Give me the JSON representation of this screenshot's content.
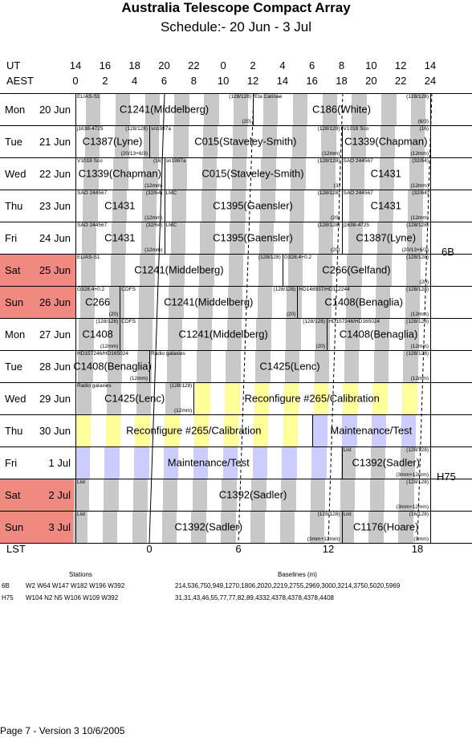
{
  "title": "Australia Telescope Compact Array",
  "subtitle": "Schedule:- 20 Jun - 3  Jul",
  "axis": {
    "ut_label": "UT",
    "aest_label": "AEST",
    "lst_label": "LST",
    "ut_ticks": [
      "14",
      "16",
      "18",
      "20",
      "22",
      "0",
      "2",
      "4",
      "6",
      "8",
      "10",
      "12",
      "14"
    ],
    "aest_ticks": [
      "0",
      "2",
      "4",
      "6",
      "8",
      "10",
      "12",
      "14",
      "16",
      "18",
      "20",
      "22",
      "24"
    ],
    "lst_ticks": [
      "0",
      "6",
      "12",
      "18"
    ]
  },
  "colors": {
    "weekend": "#f08a80",
    "grey": "#c8c8c8",
    "green": "#9be29b",
    "yellow": "#ffff99",
    "blue": "#ccccff"
  },
  "configs": [
    "6B",
    "H75"
  ],
  "days": [
    {
      "day": "Mon",
      "date": "20 Jun",
      "weekend": false
    },
    {
      "day": "Tue",
      "date": "21 Jun",
      "weekend": false
    },
    {
      "day": "Wed",
      "date": "22 Jun",
      "weekend": false
    },
    {
      "day": "Thu",
      "date": "23 Jun",
      "weekend": false
    },
    {
      "day": "Fri",
      "date": "24 Jun",
      "weekend": false
    },
    {
      "day": "Sat",
      "date": "25 Jun",
      "weekend": true
    },
    {
      "day": "Sun",
      "date": "26 Jun",
      "weekend": true
    },
    {
      "day": "Mon",
      "date": "27 Jun",
      "weekend": false
    },
    {
      "day": "Tue",
      "date": "28 Jun",
      "weekend": false
    },
    {
      "day": "Wed",
      "date": "29 Jun",
      "weekend": false
    },
    {
      "day": "Thu",
      "date": "30 Jun",
      "weekend": false
    },
    {
      "day": "Fri",
      "date": "1 Jul",
      "weekend": false
    },
    {
      "day": "Sat",
      "date": "2 Jul",
      "weekend": true
    },
    {
      "day": "Sun",
      "date": "3 Jul",
      "weekend": true
    }
  ],
  "schedule": [
    [
      {
        "s": 0,
        "e": 12,
        "name": "C1241(Middelberg)",
        "tl": "ELIAS-S1",
        "tr": "(128/128)",
        "br": "(20)"
      },
      {
        "s": 12,
        "e": 24,
        "name": "C186(White)",
        "tl": "Eta Carinae",
        "tr": "(128/128)",
        "br": "(6/3)"
      }
    ],
    [
      {
        "s": 0,
        "e": 5,
        "name": "C1387(Lyne)",
        "tl": "j1638-4725",
        "tr": "(128/128)",
        "br": "(20/13+6/3)"
      },
      {
        "s": 5,
        "e": 18,
        "name": "C015(Staveley-Smith)",
        "tl": "sn1987a",
        "tr": "(128/128)",
        "br": "(12mm)"
      },
      {
        "s": 18,
        "e": 24,
        "name": "C1339(Chapman)",
        "tl": "V1018 Sco",
        "tr": "(16)",
        "br": "(12mm)"
      }
    ],
    [
      {
        "s": 0,
        "e": 6,
        "name": "C1339(Chapman)",
        "tl": "V1018 Sco",
        "tr": "(16)",
        "br": "(12mm)"
      },
      {
        "s": 6,
        "e": 18,
        "name": "C015(Staveley-Smith)",
        "tl": "sn1987a",
        "tr": "(128/128)",
        "br": "(3)"
      },
      {
        "s": 18,
        "e": 24,
        "name": "C1431",
        "tl": "SAO 244567",
        "tr": "(32/64)",
        "br": "(12mm)"
      }
    ],
    [
      {
        "s": 0,
        "e": 6,
        "name": "C1431",
        "tl": "SAO 244567",
        "tr": "(32/64)",
        "br": "(12mm)"
      },
      {
        "s": 6,
        "e": 18,
        "name": "C1395(Gaensler)",
        "tl": "LMC",
        "tr": "(128/128)",
        "br": "(20)"
      },
      {
        "s": 18,
        "e": 24,
        "name": "C1431",
        "tl": "SAO 244567",
        "tr": "(32/64)",
        "br": "(12mm)"
      }
    ],
    [
      {
        "s": 0,
        "e": 6,
        "name": "C1431",
        "tl": "SAO 244567",
        "tr": "(32/64)",
        "br": "(12mm)"
      },
      {
        "s": 6,
        "e": 18,
        "name": "C1395(Gaensler)",
        "tl": "LMC",
        "tr": "(128/128)",
        "br": "(20)"
      },
      {
        "s": 18,
        "e": 24,
        "name": "C1387(Lyne)",
        "tl": "j1638-4725",
        "tr": "(128/128)",
        "br": "(20/13+6/3)"
      }
    ],
    [
      {
        "s": 0,
        "e": 14,
        "name": "C1241(Middelberg)",
        "tl": "ELIAS-S1",
        "tr": "(128/128)",
        "br": ""
      },
      {
        "s": 14,
        "e": 24,
        "name": "C266(Gelfand)",
        "tl": "G328.4+0.2",
        "tr": "(128/128)",
        "br": "(20)"
      }
    ],
    [
      {
        "s": 0,
        "e": 3,
        "name": "C266",
        "tl": "G328.4+0.2",
        "tr": "",
        "br": "(20)"
      },
      {
        "s": 3,
        "e": 15,
        "name": "C1241(Middelberg)",
        "tl": "CDFS",
        "tr": "(128/128)",
        "br": "(20)"
      },
      {
        "s": 15,
        "e": 24,
        "name": "C1408(Benaglia)",
        "tl": "HD148937/HD112244",
        "tr": "(128/128)",
        "br": "(12mm)"
      }
    ],
    [
      {
        "s": 0,
        "e": 3,
        "name": "C1408",
        "tl": "",
        "tr": "(128/128)",
        "br": "(12mm)"
      },
      {
        "s": 3,
        "e": 17,
        "name": "C1241(Middelberg)",
        "tl": "CDFS",
        "tr": "(128/128)",
        "br": "(20)"
      },
      {
        "s": 17,
        "e": 24,
        "name": "C1408(Benaglia)",
        "tl": "HD157246/HD165024",
        "tr": "(128/128)",
        "br": "(12mm)"
      }
    ],
    [
      {
        "s": 0,
        "e": 5,
        "name": "C1408(Benaglia)",
        "tl": "HD157246/HD165024",
        "tr": "",
        "br": "(12mm)"
      },
      {
        "s": 5,
        "e": 24,
        "name": "C1425(Lenc)",
        "tl": "Radio galaxies",
        "tr": "(128/128)",
        "br": "(12mm)"
      }
    ],
    [
      {
        "s": 0,
        "e": 8,
        "name": "C1425(Lenc)",
        "tl": "Radio galaxies",
        "tr": "(128/128)",
        "br": "(12mm)"
      },
      {
        "s": 8,
        "e": 24,
        "name": "Reconfigure #265/Calibration",
        "tl": "",
        "tr": "",
        "br": ""
      }
    ],
    [
      {
        "s": 0,
        "e": 16,
        "name": "Reconfigure #265/Calibration",
        "tl": "",
        "tr": "",
        "br": ""
      },
      {
        "s": 16,
        "e": 24,
        "name": "Maintenance/Test",
        "tl": "",
        "tr": "",
        "br": ""
      }
    ],
    [
      {
        "s": 0,
        "e": 18,
        "name": "Maintenance/Test",
        "tl": "",
        "tr": "",
        "br": ""
      },
      {
        "s": 18,
        "e": 24,
        "name": "C1392(Sadler)",
        "tl": "List",
        "tr": "(128/128)",
        "br": "(3mm+12mm)"
      }
    ],
    [
      {
        "s": 0,
        "e": 24,
        "name": "C1392(Sadler)",
        "tl": "List",
        "tr": "(128/128)",
        "br": "(3mm+12mm)"
      }
    ],
    [
      {
        "s": 0,
        "e": 18,
        "name": "C1392(Sadler)",
        "tl": "List",
        "tr": "(128/128)",
        "br": "(3mm+12mm)"
      },
      {
        "s": 18,
        "e": 24,
        "name": "C1176(Hoare)",
        "tl": "List",
        "tr": "(16/128)",
        "br": "(3mm)"
      }
    ]
  ],
  "stations": {
    "header": "Stations",
    "baselines_header": "Baselines (m)",
    "rows": [
      {
        "cfg": "6B",
        "stations": "W2 W64 W147 W182 W196 W392",
        "baselines": "214,536,750,949,1270,1806,2020,2219,2755,2969,3000,3214,3750,5020,5969"
      },
      {
        "cfg": "H75",
        "stations": "W104 N2 N5 W106 W109 W392",
        "baselines": "31,31,43,46,55,77,77,82,89,4332,4378,4378,4378,4408"
      }
    ]
  },
  "footer": "Page 7 - Version 3  10/6/2005"
}
